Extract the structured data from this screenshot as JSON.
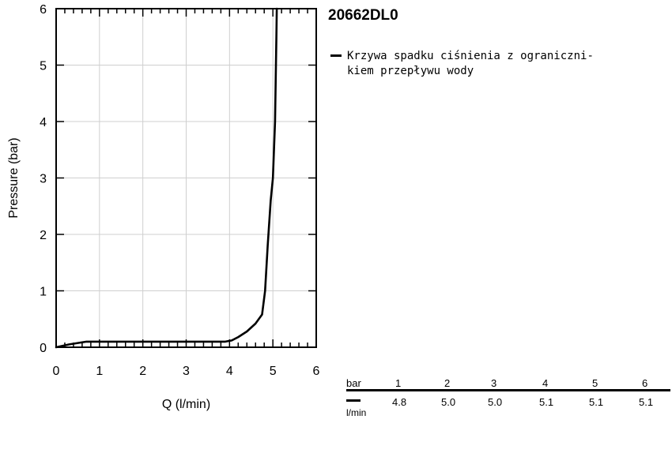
{
  "model": "20662DL0",
  "legend": {
    "label": "Krzywa spadku ciśnienia z ograniczni­kiem przepływu wody"
  },
  "chart_data": {
    "type": "line",
    "xlabel": "Q (l/min)",
    "ylabel": "Pressure (bar)",
    "xlim": [
      0,
      6
    ],
    "ylim": [
      0,
      6
    ],
    "xticks": [
      0,
      1,
      2,
      3,
      4,
      5,
      6
    ],
    "yticks": [
      0,
      1,
      2,
      3,
      4,
      5,
      6
    ],
    "grid": true,
    "series": [
      {
        "name": "Krzywa spadku ciśnienia z ogranicznikiem przepływu wody",
        "color": "#000000",
        "x": [
          0,
          0.3,
          0.7,
          1.0,
          2.0,
          3.0,
          3.9,
          4.05,
          4.2,
          4.4,
          4.6,
          4.75,
          4.82,
          4.88,
          4.95,
          5.0,
          5.05,
          5.08,
          5.09
        ],
        "y": [
          0,
          0.05,
          0.1,
          0.1,
          0.1,
          0.1,
          0.1,
          0.12,
          0.18,
          0.28,
          0.42,
          0.58,
          1.0,
          1.8,
          2.6,
          3.0,
          4.0,
          5.5,
          6.0
        ]
      }
    ]
  },
  "flow_table": {
    "header_label": "bar",
    "unit_label": "l/min",
    "pressures": [
      "1",
      "2",
      "3",
      "4",
      "5",
      "6"
    ],
    "flows": [
      "4.8",
      "5.0",
      "5.0",
      "5.1",
      "5.1",
      "5.1"
    ]
  }
}
